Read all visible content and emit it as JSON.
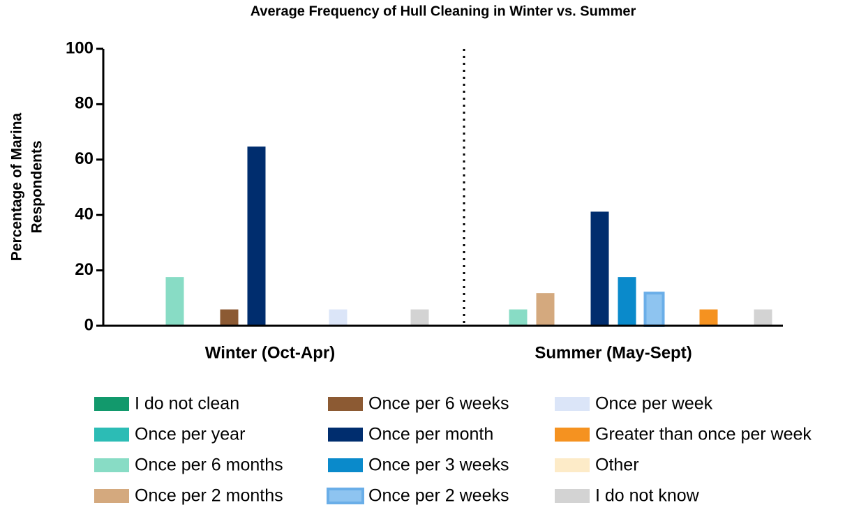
{
  "chart_data": {
    "type": "bar",
    "title": "Average Frequency of Hull Cleaning in Winter vs. Summer",
    "ylabel": [
      "Percentage of Marina",
      "Respondents"
    ],
    "categories": [
      "Winter (Oct-Apr)",
      "Summer (May-Sept)"
    ],
    "series": [
      {
        "name": "I do not clean",
        "color": "#12996c",
        "values": [
          0,
          0
        ]
      },
      {
        "name": "Once per year",
        "color": "#2cbcb5",
        "values": [
          0,
          0
        ]
      },
      {
        "name": "Once per 6 months",
        "color": "#88dcc5",
        "values": [
          17.6,
          5.9
        ]
      },
      {
        "name": "Once per 2 months",
        "color": "#d4a97e",
        "values": [
          0,
          11.8
        ]
      },
      {
        "name": "Once per 6 weeks",
        "color": "#8c5a33",
        "values": [
          5.9,
          0
        ]
      },
      {
        "name": "Once per month",
        "color": "#002d6e",
        "values": [
          64.7,
          41.2
        ]
      },
      {
        "name": "Once per 3 weeks",
        "color": "#0a8acb",
        "values": [
          0,
          17.6
        ]
      },
      {
        "name": "Once per 2 weeks",
        "color": "#8ec4f0",
        "values": [
          0,
          11.8
        ]
      },
      {
        "name": "Once per week",
        "color": "#dbe5f8",
        "values": [
          5.9,
          0
        ]
      },
      {
        "name": "Greater than once per week",
        "color": "#f59220",
        "values": [
          0,
          5.9
        ]
      },
      {
        "name": "Other",
        "color": "#fdebc8",
        "values": [
          0,
          0
        ]
      },
      {
        "name": "I do not know",
        "color": "#d3d3d3",
        "values": [
          5.9,
          5.9
        ]
      }
    ],
    "ylim": [
      0,
      100
    ],
    "yticks": [
      0,
      20,
      40,
      60,
      80,
      100
    ]
  }
}
